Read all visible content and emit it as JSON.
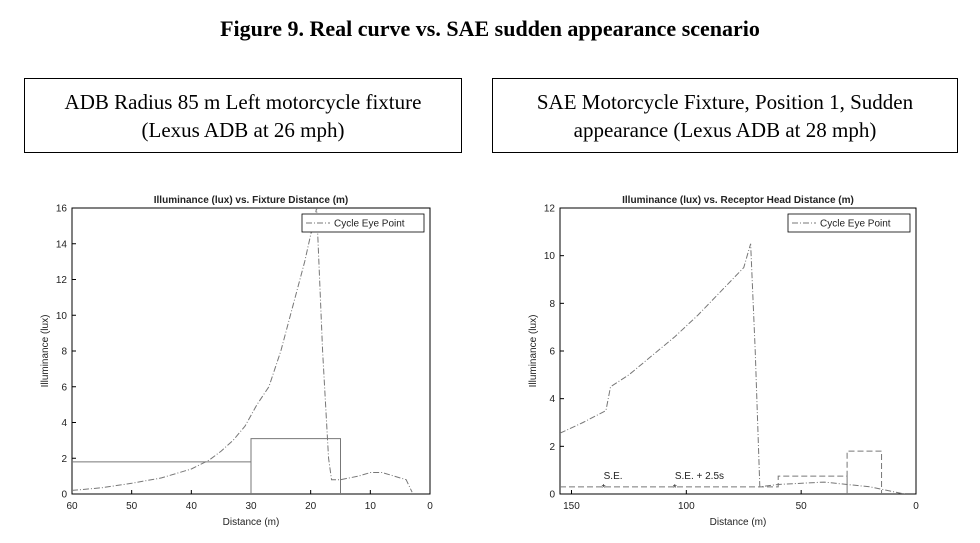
{
  "title": "Figure 9. Real curve vs. SAE sudden appearance scenario",
  "captions": [
    "ADB Radius 85 m Left motorcycle fixture (Lexus ADB at 26 mph)",
    "SAE Motorcycle Fixture, Position 1, Sudden appearance (Lexus ADB at 28 mph)"
  ],
  "chart_data": [
    {
      "type": "line",
      "title": "Illuminance (lux) vs. Fixture Distance (m)",
      "x_label": "Distance (m)",
      "y_label": "Illuminance (lux)",
      "xlim": [
        60,
        0
      ],
      "xticks": [
        60,
        50,
        40,
        30,
        20,
        10,
        0
      ],
      "ylim": [
        0,
        16
      ],
      "yticks": [
        0,
        2,
        4,
        6,
        8,
        10,
        12,
        14,
        16
      ],
      "legend": "upper right",
      "series": [
        {
          "name": "Cycle Eye Point",
          "color": "#777777",
          "style": "dashdot",
          "x": [
            60,
            55,
            50,
            45,
            40,
            37,
            35,
            33,
            31,
            29,
            27,
            25,
            23,
            21,
            20,
            19.5,
            19,
            18,
            17,
            16.5,
            15,
            12,
            10,
            8,
            6,
            4,
            3
          ],
          "values": [
            0.2,
            0.35,
            0.6,
            0.9,
            1.4,
            1.9,
            2.4,
            3,
            3.8,
            5,
            6,
            8,
            10.5,
            13,
            14.5,
            15.2,
            16,
            8,
            2,
            0.8,
            0.8,
            1.0,
            1.2,
            1.2,
            1.0,
            0.8,
            0.1
          ]
        },
        {
          "color": "#777777",
          "style": "solid",
          "x": [
            60,
            30,
            30,
            30,
            15,
            15
          ],
          "values": [
            1.8,
            1.8,
            0,
            3.1,
            3.1,
            0
          ]
        }
      ]
    },
    {
      "type": "line",
      "title": "Illuminance (lux) vs. Receptor Head Distance (m)",
      "x_label": "Distance (m)",
      "y_label": "Illuminance (lux)",
      "xlim": [
        155,
        0
      ],
      "xticks": [
        150,
        100,
        50,
        0
      ],
      "ylim": [
        0,
        12
      ],
      "yticks": [
        0,
        2,
        4,
        6,
        8,
        10,
        12
      ],
      "legend": "upper right",
      "series": [
        {
          "name": "Cycle Eye Point",
          "color": "#777777",
          "style": "dashdot",
          "x": [
            155,
            145,
            135,
            133,
            125,
            115,
            105,
            95,
            85,
            80,
            75,
            72,
            70,
            68,
            60,
            40,
            30,
            20,
            10,
            5
          ],
          "values": [
            2.55,
            3.0,
            3.5,
            4.5,
            5.0,
            5.8,
            6.6,
            7.5,
            8.5,
            9.0,
            9.5,
            10.5,
            6,
            0.3,
            0.4,
            0.5,
            0.4,
            0.3,
            0.1,
            0
          ]
        },
        {
          "color": "#777777",
          "style": "dashed",
          "x": [
            155,
            60,
            60,
            30,
            30,
            30,
            15,
            15
          ],
          "values": [
            0.3,
            0.3,
            0.75,
            0.75,
            0,
            1.8,
            1.8,
            0
          ]
        }
      ],
      "annotations": [
        {
          "text": "S.E.",
          "x": 136,
          "y": 0.3
        },
        {
          "text": "S.E. + 2.5s",
          "x": 105,
          "y": 0.3
        }
      ]
    }
  ]
}
